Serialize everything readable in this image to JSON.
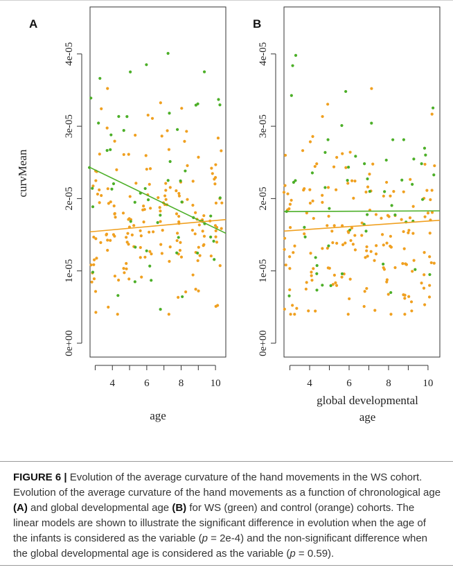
{
  "chart_data": [
    {
      "type": "scatter",
      "panel_label": "A",
      "xlabel": "age",
      "ylabel": "curvMean",
      "xlim": [
        2.7,
        10.6
      ],
      "ylim": [
        0,
        4.65e-05
      ],
      "x_ticks": [
        4,
        6,
        8,
        10
      ],
      "y_ticks": [
        0,
        1e-05,
        2e-05,
        3e-05,
        4e-05
      ],
      "y_tick_labels": [
        "0e+00",
        "1e-05",
        "2e-05",
        "3e-05",
        "4e-05"
      ],
      "series": [
        {
          "name": "WS",
          "color": "#4caf28",
          "fit": {
            "x": [
              2.7,
              10.6
            ],
            "y": [
              2.43e-05,
              1.52e-05
            ]
          }
        },
        {
          "name": "control",
          "color": "#f0a020",
          "fit": {
            "x": [
              2.7,
              10.6
            ],
            "y": [
              1.54e-05,
              1.71e-05
            ]
          }
        }
      ],
      "grid": false,
      "legend": "none"
    },
    {
      "type": "scatter",
      "panel_label": "B",
      "xlabel": "global developmental age",
      "xlabel_lines": [
        "global developmental",
        "age"
      ],
      "ylabel": "",
      "xlim": [
        2.7,
        10.6
      ],
      "ylim": [
        0,
        4.65e-05
      ],
      "x_ticks": [
        4,
        6,
        8,
        10
      ],
      "y_ticks": [
        0,
        1e-05,
        2e-05,
        3e-05,
        4e-05
      ],
      "y_tick_labels": [
        "0e+00",
        "1e-05",
        "2e-05",
        "3e-05",
        "4e-05"
      ],
      "series": [
        {
          "name": "WS",
          "color": "#4caf28",
          "fit": {
            "x": [
              2.7,
              10.6
            ],
            "y": [
              1.82e-05,
              1.83e-05
            ]
          }
        },
        {
          "name": "control",
          "color": "#f0a020",
          "fit": {
            "x": [
              2.7,
              10.6
            ],
            "y": [
              1.55e-05,
              1.7e-05
            ]
          }
        }
      ],
      "grid": false,
      "legend": "none"
    }
  ],
  "caption": {
    "label": "FIGURE 6 |",
    "parts": [
      " Evolution of the average curvature of the hand movements in the WS cohort. Evolution of the average curvature of the hand movements as a function of chronological age ",
      "(A)",
      " and global developmental age ",
      "(B)",
      " for WS (green) and control (orange) cohorts. The linear models are shown to illustrate the significant difference in evolution when the age of the infants is considered as the variable (",
      "p",
      " = 2e-4) and the non-significant difference when the global developmental age is considered as the variable (",
      "p",
      " = 0.59)."
    ]
  }
}
